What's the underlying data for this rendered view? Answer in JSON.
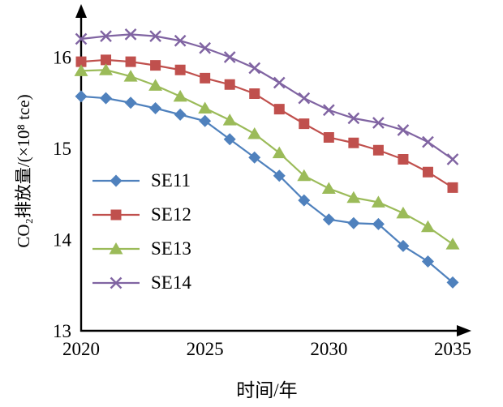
{
  "chart_data": {
    "type": "line",
    "title": "",
    "xlabel": "时间/年",
    "ylabel": "CO₂排放量/(×10⁸ tce)",
    "x": [
      2020,
      2021,
      2022,
      2023,
      2024,
      2025,
      2026,
      2027,
      2028,
      2029,
      2030,
      2031,
      2032,
      2033,
      2034,
      2035
    ],
    "xticks": [
      2020,
      2025,
      2030,
      2035
    ],
    "yticks": [
      13,
      14,
      15,
      16
    ],
    "xlim": [
      2020,
      2035
    ],
    "ylim": [
      13,
      16
    ],
    "grid": false,
    "legend_position": "inside-left",
    "axis_color": "#000000",
    "series": [
      {
        "name": "SE11",
        "color": "#4f81bd",
        "marker": "diamond",
        "values": [
          15.57,
          15.55,
          15.5,
          15.44,
          15.37,
          15.3,
          15.1,
          14.9,
          14.7,
          14.43,
          14.22,
          14.18,
          14.17,
          13.93,
          13.76,
          13.53
        ]
      },
      {
        "name": "SE12",
        "color": "#c0504d",
        "marker": "square",
        "values": [
          15.95,
          15.97,
          15.95,
          15.91,
          15.86,
          15.77,
          15.7,
          15.6,
          15.43,
          15.27,
          15.12,
          15.06,
          14.98,
          14.88,
          14.74,
          14.57
        ]
      },
      {
        "name": "SE13",
        "color": "#9bbb59",
        "marker": "triangle",
        "values": [
          15.85,
          15.86,
          15.79,
          15.69,
          15.57,
          15.44,
          15.31,
          15.16,
          14.95,
          14.7,
          14.56,
          14.46,
          14.41,
          14.29,
          14.14,
          13.95
        ]
      },
      {
        "name": "SE14",
        "color": "#8064a2",
        "marker": "x",
        "values": [
          16.2,
          16.23,
          16.25,
          16.23,
          16.18,
          16.1,
          16.0,
          15.88,
          15.72,
          15.55,
          15.42,
          15.33,
          15.28,
          15.2,
          15.07,
          14.88
        ]
      }
    ]
  }
}
